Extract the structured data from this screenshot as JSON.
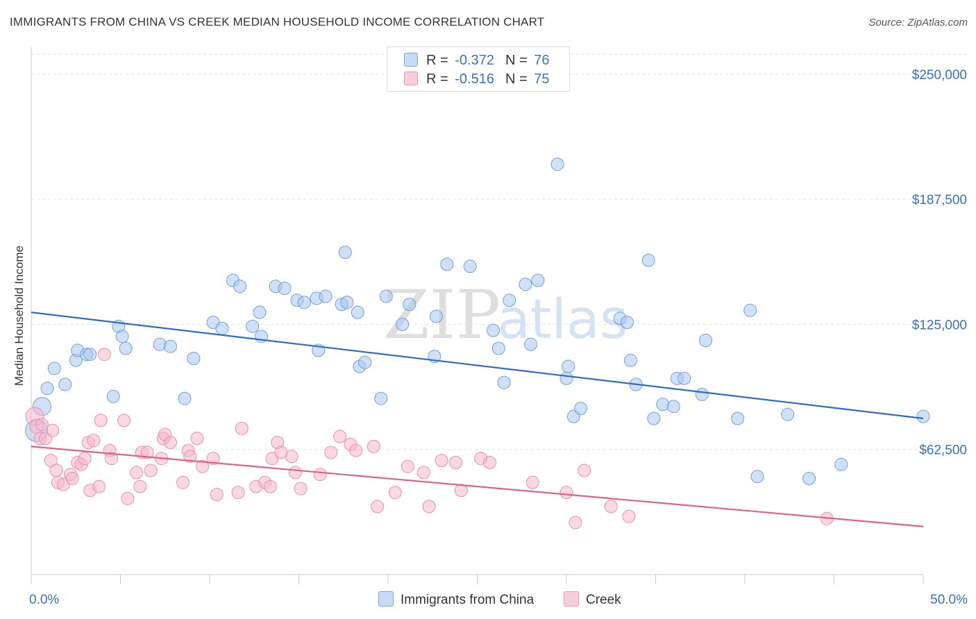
{
  "title": "IMMIGRANTS FROM CHINA VS CREEK MEDIAN HOUSEHOLD INCOME CORRELATION CHART",
  "source": "Source: ZipAtlas.com",
  "watermark": {
    "part1": "ZIP",
    "part2": "atlas"
  },
  "legend": {
    "rows": [
      {
        "r_label": "R =",
        "r_value": "-0.372",
        "n_label": "N =",
        "n_value": "76",
        "color": "#a9c8f0"
      },
      {
        "r_label": "R =",
        "r_value": "-0.516",
        "n_label": "N =",
        "n_value": "75",
        "color": "#f6b8cb"
      }
    ]
  },
  "chart_data": {
    "type": "scatter",
    "title": "IMMIGRANTS FROM CHINA VS CREEK MEDIAN HOUSEHOLD INCOME CORRELATION CHART",
    "xlabel": "",
    "ylabel": "Median Household Income",
    "xlim": [
      0,
      50
    ],
    "ylim": [
      0,
      260000
    ],
    "x_tick_labels": {
      "left": "0.0%",
      "right": "50.0%"
    },
    "y_ticks": [
      {
        "value": 62500,
        "label": "$62,500"
      },
      {
        "value": 125000,
        "label": "$125,000"
      },
      {
        "value": 187500,
        "label": "$187,500"
      },
      {
        "value": 250000,
        "label": "$250,000"
      }
    ],
    "grid": true,
    "series": [
      {
        "name": "Immigrants from China",
        "color": "#a9c8f0",
        "stroke": "#6f9fdc",
        "line_color": "#2a6ccc",
        "trend": {
          "x": [
            0,
            50
          ],
          "y": [
            131000,
            78000
          ]
        },
        "x": [
          0.3,
          0.6,
          0.9,
          1.3,
          1.9,
          2.5,
          2.6,
          3.1,
          3.3,
          4.6,
          4.9,
          5.1,
          5.3,
          7.2,
          7.8,
          8.6,
          9.1,
          10.2,
          10.7,
          11.3,
          11.7,
          12.4,
          12.8,
          12.9,
          13.7,
          14.2,
          14.9,
          15.3,
          16.0,
          16.1,
          16.5,
          17.4,
          17.6,
          17.7,
          18.3,
          18.4,
          18.7,
          19.6,
          19.9,
          20.8,
          21.2,
          22.6,
          22.7,
          23.3,
          24.6,
          25.9,
          26.2,
          26.5,
          26.8,
          27.7,
          28.0,
          28.4,
          29.5,
          30.0,
          30.1,
          30.4,
          30.8,
          33.0,
          33.4,
          33.6,
          33.9,
          34.6,
          34.9,
          35.4,
          36.0,
          36.2,
          36.6,
          37.6,
          37.8,
          39.6,
          40.3,
          40.7,
          42.4,
          43.6,
          45.4,
          50.0
        ],
        "y": [
          72000,
          84000,
          93000,
          103000,
          95000,
          107000,
          112000,
          110000,
          110000,
          89000,
          124000,
          119000,
          113000,
          115000,
          114000,
          88000,
          108000,
          126000,
          123000,
          147000,
          144000,
          124000,
          131000,
          119000,
          144000,
          143000,
          137000,
          136000,
          138000,
          112000,
          139000,
          135000,
          161000,
          136000,
          131000,
          104000,
          106000,
          88000,
          139000,
          125000,
          135000,
          109000,
          129000,
          155000,
          154000,
          122000,
          113000,
          96000,
          137000,
          145000,
          115000,
          147000,
          205000,
          98000,
          104000,
          79000,
          83000,
          128000,
          126000,
          107000,
          95000,
          157000,
          78000,
          85000,
          84000,
          98000,
          98000,
          90000,
          117000,
          78000,
          132000,
          49000,
          80000,
          48000,
          55000,
          79000
        ]
      },
      {
        "name": "Creek",
        "color": "#f6b8cb",
        "stroke": "#ea8fab",
        "line_color": "#e0608c",
        "trend": {
          "x": [
            0,
            50
          ],
          "y": [
            64000,
            24000
          ]
        },
        "x": [
          0.2,
          0.3,
          0.5,
          0.6,
          0.8,
          1.1,
          1.2,
          1.4,
          1.5,
          1.8,
          2.2,
          2.3,
          2.6,
          2.8,
          3.0,
          3.2,
          3.3,
          3.5,
          3.8,
          3.9,
          4.1,
          4.4,
          4.5,
          5.2,
          5.4,
          5.9,
          6.1,
          6.2,
          6.5,
          6.7,
          7.3,
          7.4,
          7.5,
          7.8,
          8.5,
          8.8,
          8.9,
          9.3,
          9.6,
          10.2,
          10.4,
          11.6,
          11.8,
          12.6,
          13.1,
          13.4,
          13.5,
          13.8,
          14.0,
          14.6,
          14.8,
          15.1,
          16.2,
          16.8,
          17.3,
          17.9,
          18.2,
          19.2,
          19.4,
          20.4,
          21.1,
          22.0,
          22.3,
          23.0,
          23.8,
          24.1,
          25.2,
          25.7,
          28.1,
          30.0,
          30.5,
          31.0,
          32.5,
          33.5,
          44.6
        ],
        "y": [
          79000,
          74000,
          68000,
          75000,
          68000,
          57000,
          72000,
          52000,
          46000,
          45000,
          50000,
          48000,
          56000,
          55000,
          58000,
          66000,
          42000,
          67000,
          44000,
          77000,
          110000,
          62000,
          58000,
          77000,
          38000,
          51000,
          44000,
          61000,
          61000,
          52000,
          58000,
          68000,
          70000,
          66000,
          46000,
          62000,
          59000,
          68000,
          54000,
          58000,
          40000,
          41000,
          73000,
          44000,
          46000,
          44000,
          58000,
          66000,
          61000,
          59000,
          51000,
          43000,
          50000,
          61000,
          69000,
          65000,
          62000,
          64000,
          34000,
          41000,
          54000,
          51000,
          34000,
          57000,
          56000,
          42000,
          58000,
          56000,
          46000,
          41000,
          26000,
          52000,
          34000,
          29000,
          28000
        ]
      }
    ]
  },
  "bottom_legend": {
    "items": [
      {
        "label": "Immigrants from China",
        "color": "#a9c8f0"
      },
      {
        "label": "Creek",
        "color": "#f6b8cb"
      }
    ]
  }
}
